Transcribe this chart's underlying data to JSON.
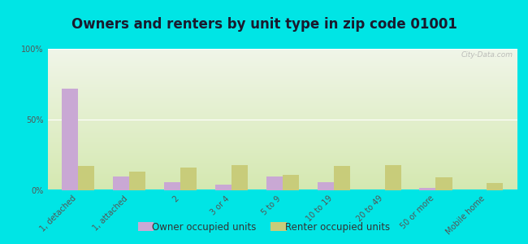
{
  "title": "Owners and renters by unit type in zip code 01001",
  "categories": [
    "1, detached",
    "1, attached",
    "2",
    "3 or 4",
    "5 to 9",
    "10 to 19",
    "20 to 49",
    "50 or more",
    "Mobile home"
  ],
  "owner_values": [
    72,
    10,
    6,
    4,
    10,
    6,
    0,
    2,
    0
  ],
  "renter_values": [
    17,
    13,
    16,
    18,
    11,
    17,
    18,
    9,
    5
  ],
  "owner_color": "#c9a8d4",
  "renter_color": "#c8cc7a",
  "background_outer": "#00e5e5",
  "background_plot_top": "#f0f5e8",
  "background_plot_bottom": "#d4e8b0",
  "yticks": [
    0,
    50,
    100
  ],
  "ytick_labels": [
    "0%",
    "50%",
    "100%"
  ],
  "ylim": [
    0,
    100
  ],
  "watermark": "City-Data.com",
  "legend_owner": "Owner occupied units",
  "legend_renter": "Renter occupied units",
  "title_fontsize": 12,
  "tick_fontsize": 7,
  "legend_fontsize": 8.5
}
